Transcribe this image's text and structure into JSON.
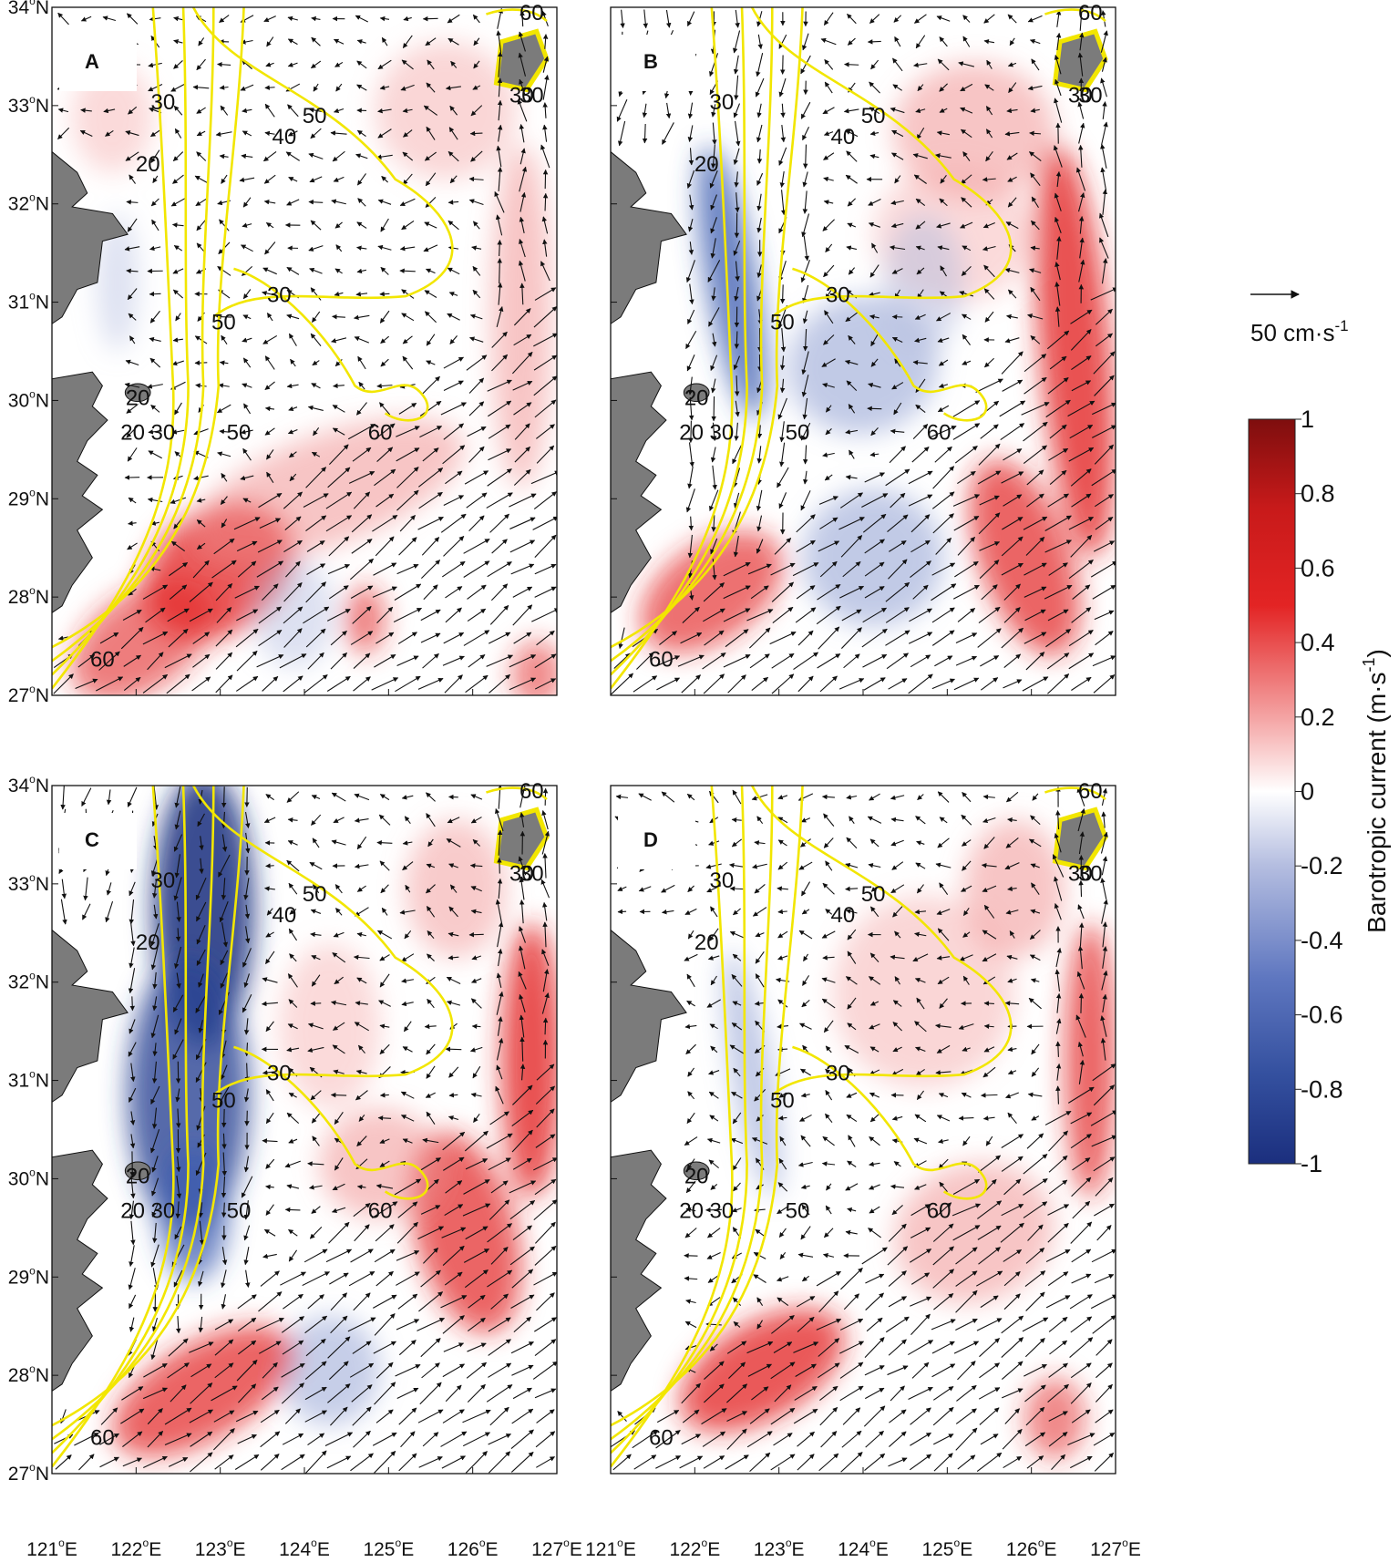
{
  "figure": {
    "panels": [
      {
        "letter": "A",
        "contour_labels": [
          "60",
          "30",
          "50",
          "40",
          "20",
          "30",
          "50",
          "20",
          "20",
          "30",
          "50",
          "60",
          "60",
          "30",
          "30"
        ],
        "pattern": "calm"
      },
      {
        "letter": "B",
        "contour_labels": [
          "60",
          "30",
          "50",
          "40",
          "20",
          "30",
          "50",
          "20",
          "20",
          "30",
          "50",
          "60",
          "60",
          "30",
          "30"
        ],
        "pattern": "coastal-neg"
      },
      {
        "letter": "C",
        "contour_labels": [
          "60",
          "30",
          "50",
          "40",
          "20",
          "30",
          "50",
          "20",
          "20",
          "30",
          "50",
          "60",
          "60",
          "30",
          "30"
        ],
        "pattern": "strong-neg"
      },
      {
        "letter": "D",
        "contour_labels": [
          "60",
          "30",
          "50",
          "40",
          "20",
          "30",
          "50",
          "20",
          "20",
          "30",
          "50",
          "60",
          "60",
          "30",
          "30"
        ],
        "pattern": "mild"
      }
    ],
    "lat_labels": [
      "34",
      "33",
      "32",
      "31",
      "30",
      "29",
      "28",
      "27"
    ],
    "lat_suffix": "N",
    "lon_labels": [
      "121",
      "122",
      "123",
      "124",
      "125",
      "126",
      "127"
    ],
    "lon_suffix": "E",
    "degree_mark": "o",
    "scale_vector": {
      "text": "50 cm·s",
      "exponent": "-1"
    },
    "colorbar": {
      "title": "Barotropic current  (m·s",
      "title_exponent": "-1",
      "title_close": ")",
      "tick_labels": [
        "1",
        "0.8",
        "0.6",
        "0.4",
        "0.2",
        "0",
        "-0.2",
        "-0.4",
        "-0.6",
        "-0.8",
        "-1"
      ],
      "range": [
        -1,
        1
      ],
      "colors": [
        "#1b2f7e",
        "#3b5bb0",
        "#8e9ed2",
        "#ffffff",
        "#f4a3a3",
        "#e32424",
        "#7e0e0e"
      ]
    },
    "colors": {
      "contour": "#f2e600",
      "land": "#7b7b7b",
      "arrow": "#111111"
    }
  }
}
